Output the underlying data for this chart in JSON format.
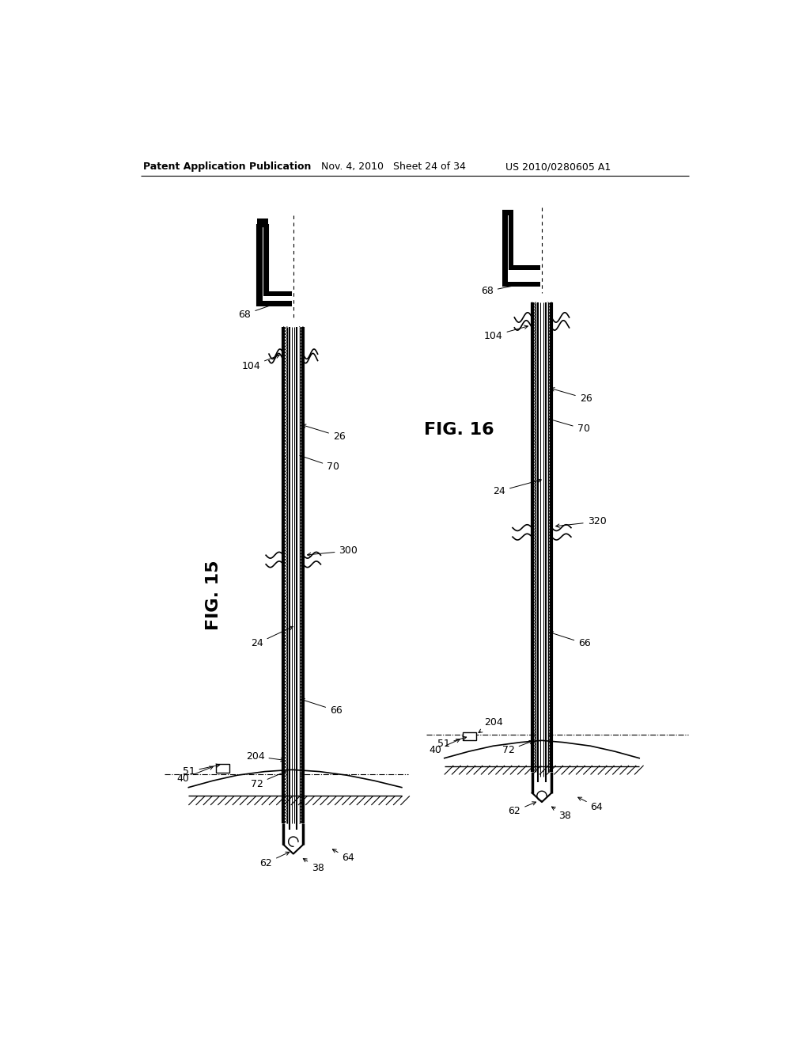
{
  "background_color": "#ffffff",
  "header_left": "Patent Application Publication",
  "header_middle": "Nov. 4, 2010   Sheet 24 of 34",
  "header_right": "US 2010/0280605 A1",
  "fig15_label": "FIG. 15",
  "fig16_label": "FIG. 16"
}
